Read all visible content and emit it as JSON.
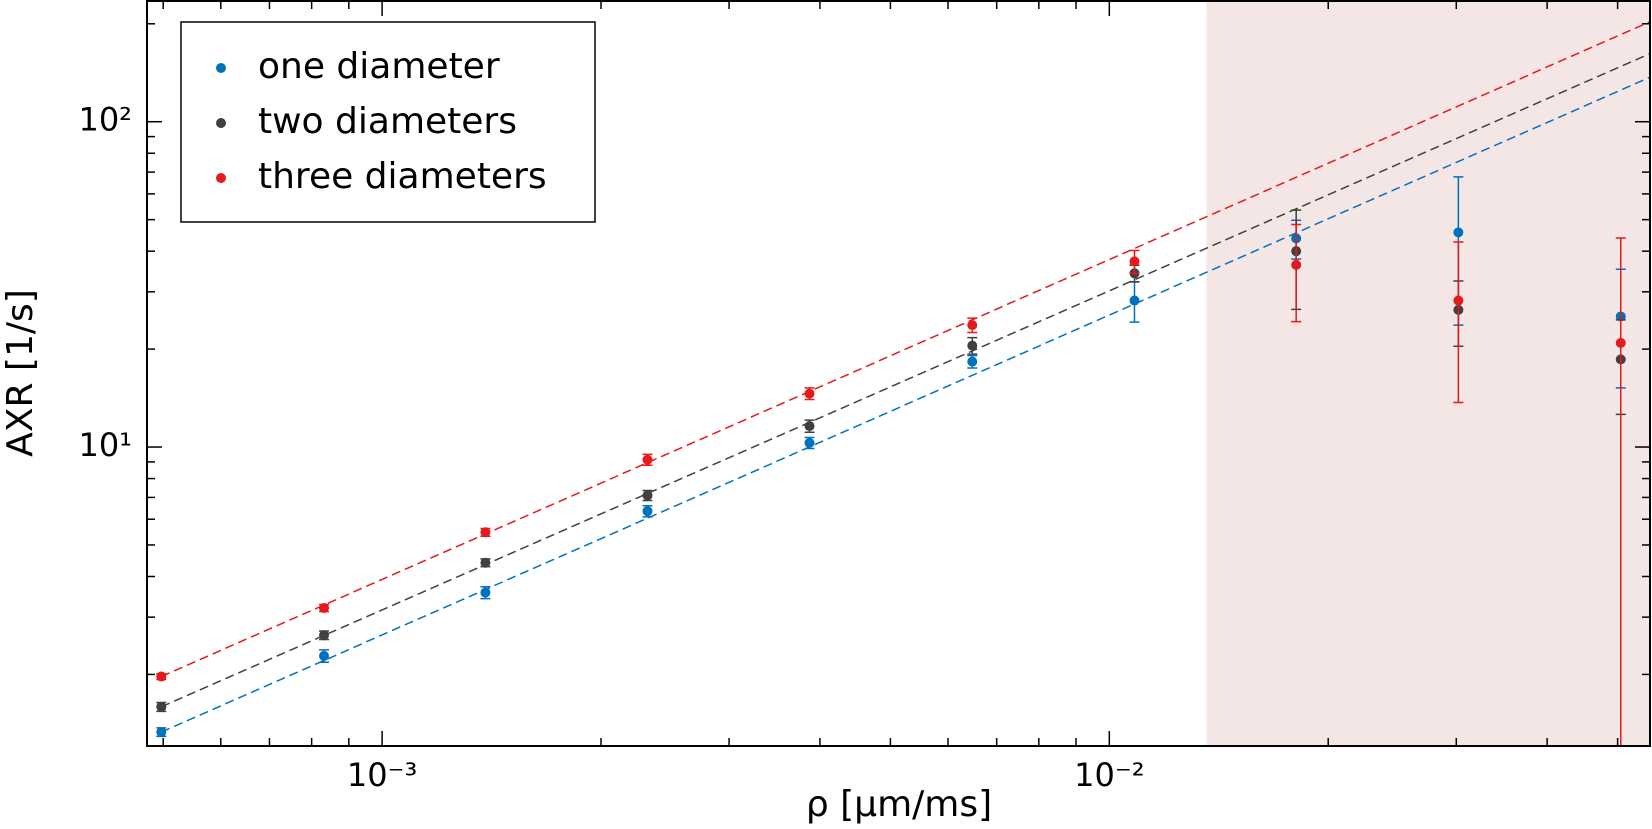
{
  "chart_data": {
    "type": "scatter",
    "xlabel": "ρ [µm/ms]",
    "ylabel": "AXR [1/s]",
    "xscale": "log",
    "yscale": "log",
    "xlim": [
      0.000475,
      0.0554
    ],
    "ylim": [
      1.205,
      235
    ],
    "xticks": [
      {
        "value": 0.001,
        "label": "10⁻³"
      },
      {
        "value": 0.01,
        "label": "10⁻²"
      }
    ],
    "yticks": [
      {
        "value": 10,
        "label": "10¹"
      },
      {
        "value": 100,
        "label": "10²"
      }
    ],
    "xminorticks": [
      0.0005,
      0.0006,
      0.0007,
      0.0008,
      0.0009,
      0.002,
      0.003,
      0.004,
      0.005,
      0.006,
      0.007,
      0.008,
      0.009,
      0.02,
      0.03,
      0.04,
      0.05
    ],
    "yminorticks": [
      2,
      3,
      4,
      5,
      6,
      7,
      8,
      9,
      20,
      30,
      40,
      50,
      60,
      70,
      80,
      90,
      200
    ],
    "legend": "upper left",
    "shaded_region": {
      "xlim": [
        0.0136,
        0.0554
      ],
      "color": "#f5e6e6"
    },
    "x": [
      0.000497,
      0.000832,
      0.001387,
      0.002317,
      0.00387,
      0.00648,
      0.01083,
      0.01807,
      0.0302,
      0.0505
    ],
    "series": [
      {
        "name": "one diameter",
        "color": "#0072bd",
        "values": [
          1.33,
          2.28,
          3.57,
          6.35,
          10.3,
          18.3,
          28.2,
          43.8,
          45.7,
          25.2
        ],
        "errors": [
          0.04,
          0.1,
          0.15,
          0.25,
          0.4,
          0.8,
          4,
          6,
          22,
          10
        ]
      },
      {
        "name": "two diameters",
        "color": "#404040",
        "values": [
          1.59,
          2.64,
          4.41,
          7.1,
          11.6,
          20.5,
          34.2,
          40.0,
          26.4,
          18.6
        ],
        "errors": [
          0.05,
          0.08,
          0.12,
          0.25,
          0.5,
          1.2,
          2,
          13.5,
          6,
          6
        ]
      },
      {
        "name": "three diameters",
        "color": "#e41a1c",
        "values": [
          1.97,
          3.2,
          5.47,
          9.14,
          14.6,
          23.7,
          37.2,
          36.3,
          28.2,
          20.9
        ],
        "errors": [
          0.04,
          0.08,
          0.15,
          0.35,
          0.6,
          1.2,
          3,
          12,
          14.5,
          23
        ]
      }
    ],
    "fit_lines": [
      {
        "color": "#0072bd",
        "x": [
          0.000497,
          0.0554
        ],
        "values": [
          1.33,
          137
        ]
      },
      {
        "color": "#404040",
        "x": [
          0.000497,
          0.0554
        ],
        "values": [
          1.59,
          162
        ]
      },
      {
        "color": "#e41a1c",
        "x": [
          0.000497,
          0.0554
        ],
        "values": [
          1.97,
          203
        ]
      }
    ]
  }
}
